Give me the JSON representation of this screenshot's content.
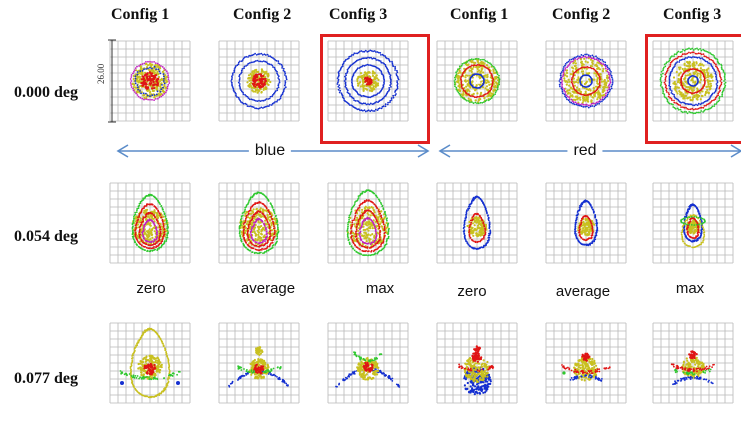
{
  "columns": [
    {
      "label": "Config 1",
      "color": "blue"
    },
    {
      "label": "Config 2",
      "color": "blue"
    },
    {
      "label": "Config 3",
      "color": "blue"
    },
    {
      "label": "Config 1",
      "color": "red"
    },
    {
      "label": "Config 2",
      "color": "red"
    },
    {
      "label": "Config 3",
      "color": "red"
    }
  ],
  "rows": [
    {
      "label": "0.000 deg"
    },
    {
      "label": "0.054 deg"
    },
    {
      "label": "0.077 deg"
    }
  ],
  "scale_label": "26.00",
  "groups": {
    "blue": "blue",
    "red": "red"
  },
  "sublabels": [
    "zero",
    "average",
    "max",
    "zero",
    "average",
    "max"
  ],
  "highlighted_columns": [
    2,
    5
  ],
  "colors": {
    "grid": "#b8b8b8",
    "highlight": "#e02020",
    "arrow": "#5b8cc9",
    "blue": "#1530d0",
    "red": "#e01515",
    "yellow": "#c8c020",
    "green": "#2ec82e",
    "magenta": "#c020c0"
  }
}
